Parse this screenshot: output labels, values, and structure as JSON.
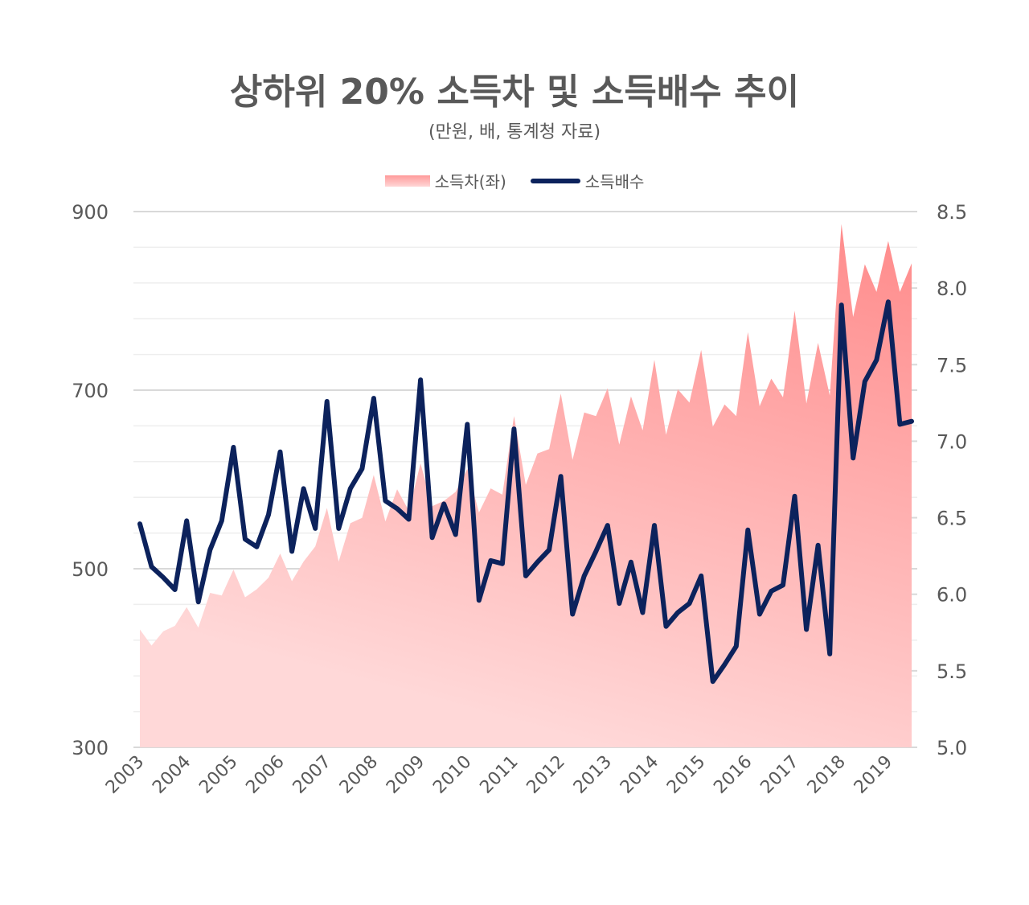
{
  "chart_data": {
    "type": "area+line",
    "title": "상하위 20% 소득차 및 소득배수 추이",
    "subtitle": "(만원, 배, 통계청 자료)",
    "legend": {
      "placement": "top",
      "entries": [
        "소득차(좌)",
        "소득배수"
      ]
    },
    "x_tick_labels": [
      "2003",
      "2004",
      "2005",
      "2006",
      "2007",
      "2008",
      "2009",
      "2010",
      "2011",
      "2012",
      "2013",
      "2014",
      "2015",
      "2016",
      "2017",
      "2018",
      "2019"
    ],
    "x_period": "quarterly, 2003 Q1 - 2019 Q3",
    "y_left": {
      "range": [
        300,
        900
      ],
      "ticks": [
        "300",
        "500",
        "700",
        "900"
      ]
    },
    "y_right": {
      "range": [
        5.0,
        8.5
      ],
      "ticks": [
        "5.0",
        "5.5",
        "6.0",
        "6.5",
        "7.0",
        "7.5",
        "8.0",
        "8.5"
      ]
    },
    "grid": true,
    "colors": {
      "area_top": "#ff8a8a",
      "area_bottom": "#ffd8d8",
      "line": "#0c225c",
      "text": "#595959",
      "grid": "#e6e6e6"
    },
    "series": [
      {
        "name": "소득차(좌)",
        "type": "area",
        "axis": "left",
        "values": [
          432,
          414,
          430,
          436,
          457,
          434,
          473,
          470,
          499,
          468,
          477,
          490,
          517,
          486,
          508,
          525,
          568,
          508,
          551,
          557,
          605,
          553,
          589,
          565,
          618,
          570,
          576,
          586,
          612,
          563,
          590,
          583,
          671,
          594,
          629,
          634,
          696,
          622,
          675,
          671,
          702,
          639,
          693,
          655,
          734,
          650,
          701,
          686,
          745,
          659,
          684,
          671,
          765,
          682,
          713,
          692,
          789,
          685,
          753,
          694,
          886,
          782,
          841,
          810,
          867,
          810,
          842
        ]
      },
      {
        "name": "소득배수",
        "type": "line",
        "axis": "right",
        "values": [
          6.46,
          6.18,
          6.11,
          6.03,
          6.48,
          5.95,
          6.29,
          6.48,
          6.96,
          6.36,
          6.31,
          6.52,
          6.93,
          6.28,
          6.69,
          6.43,
          7.26,
          6.43,
          6.69,
          6.82,
          7.28,
          6.61,
          6.56,
          6.49,
          7.4,
          6.37,
          6.59,
          6.39,
          7.11,
          5.96,
          6.22,
          6.2,
          7.08,
          6.12,
          6.21,
          6.29,
          6.77,
          5.87,
          6.12,
          6.28,
          6.45,
          5.94,
          6.21,
          5.88,
          6.45,
          5.79,
          5.88,
          5.94,
          6.12,
          5.43,
          5.54,
          5.66,
          6.42,
          5.87,
          6.02,
          6.06,
          6.64,
          5.77,
          6.32,
          5.61,
          7.89,
          6.89,
          7.39,
          7.53,
          7.91,
          7.11,
          7.13
        ]
      }
    ]
  }
}
